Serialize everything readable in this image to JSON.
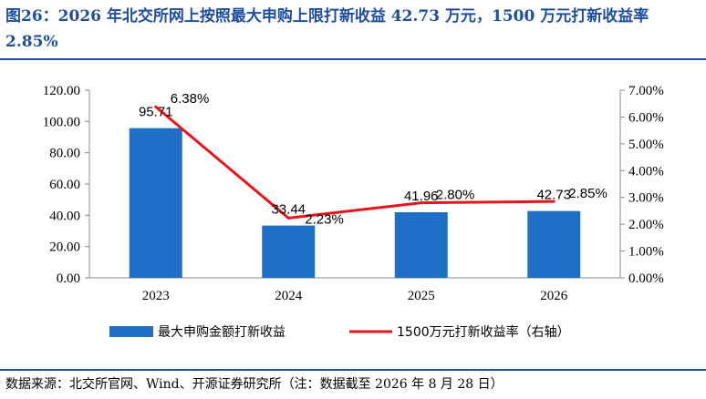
{
  "figure": {
    "title": "图26：2026 年北交所网上按照最大申购上限打新收益 42.73 万元，1500 万元打新收益率 2.85%",
    "source": "数据来源：北交所官网、Wind、开源证券研究所（注：数据截至 2026 年 8 月 28 日）"
  },
  "chart_data": {
    "type": "bar",
    "categories": [
      "2023",
      "2024",
      "2025",
      "2026"
    ],
    "series": [
      {
        "name": "最大申购金额打新收益",
        "type": "bar",
        "axis": "left",
        "values": [
          95.71,
          33.44,
          41.96,
          42.73
        ],
        "labels": [
          "95.71",
          "33.44",
          "41.96",
          "42.73"
        ],
        "color": "#1f6fc6"
      },
      {
        "name": "1500万元打新收益率（右轴）",
        "type": "line",
        "axis": "right",
        "values": [
          6.38,
          2.23,
          2.8,
          2.85
        ],
        "labels": [
          "6.38%",
          "2.23%",
          "2.80%",
          "2.85%"
        ],
        "color": "#e8141c"
      }
    ],
    "y_left": {
      "ylim": [
        0,
        120
      ],
      "ticks": [
        "0.00",
        "20.00",
        "40.00",
        "60.00",
        "80.00",
        "100.00",
        "120.00"
      ]
    },
    "y_right": {
      "ylim": [
        0,
        7
      ],
      "ticks": [
        "0.00%",
        "1.00%",
        "2.00%",
        "3.00%",
        "4.00%",
        "5.00%",
        "6.00%",
        "7.00%"
      ]
    },
    "grid": false,
    "legend": "bottom"
  }
}
